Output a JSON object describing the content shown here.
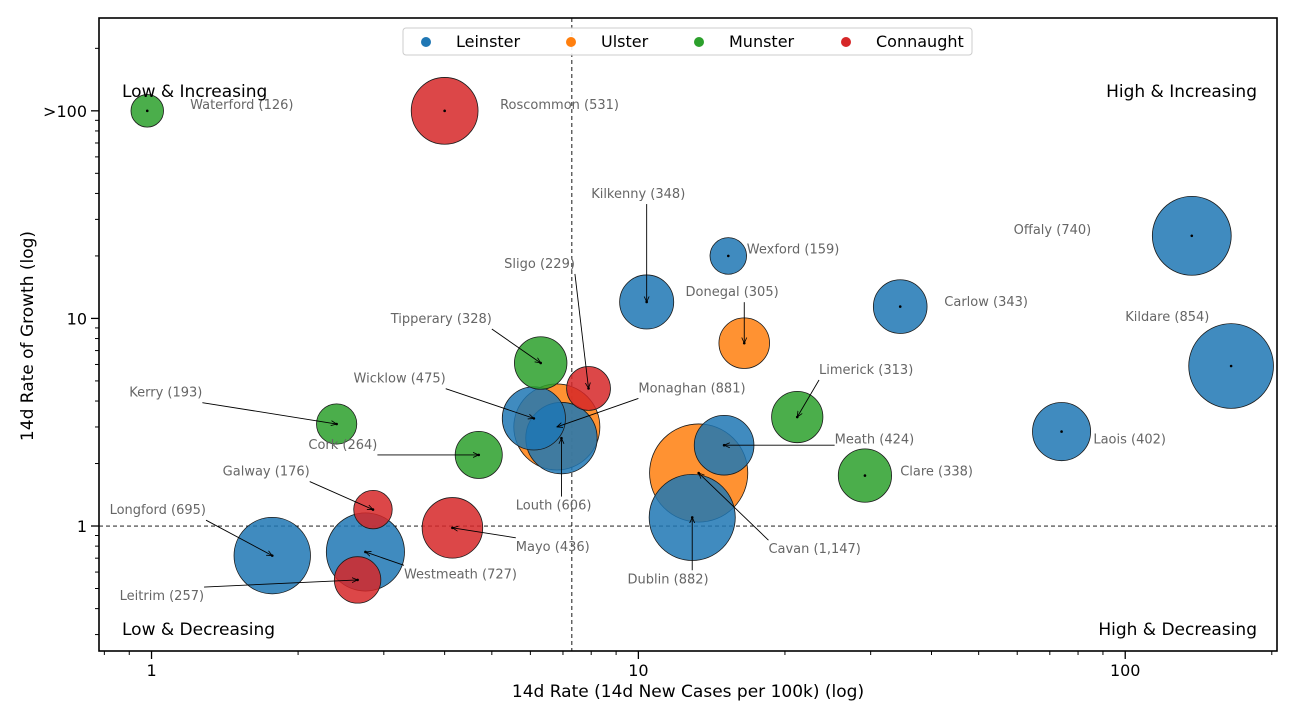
{
  "chart_data": {
    "type": "scatter",
    "xlabel": "14d Rate (14d New Cases per 100k) (log)",
    "ylabel": "14d Rate of Growth (log)",
    "x_scale": "log",
    "y_scale": "log",
    "xlim": [
      0.78,
      205
    ],
    "ylim": [
      0.25,
      280
    ],
    "x_ticks": [
      {
        "value": 1,
        "label": "1"
      },
      {
        "value": 10,
        "label": "10"
      },
      {
        "value": 100,
        "label": "100"
      }
    ],
    "y_ticks": [
      {
        "value": 1,
        "label": "1"
      },
      {
        "value": 10,
        "label": "10"
      },
      {
        "value": 100,
        "label": ">100"
      }
    ],
    "reference_lines": {
      "x": 7.3,
      "y": 1
    },
    "quadrants": {
      "top_left": "Low & Increasing",
      "top_right": "High & Increasing",
      "bottom_left": "Low & Decreasing",
      "bottom_right": "High & Decreasing"
    },
    "legend": {
      "placement": "top-center",
      "entries": [
        {
          "name": "Leinster",
          "color": "#1f77b4"
        },
        {
          "name": "Ulster",
          "color": "#ff7f0e"
        },
        {
          "name": "Munster",
          "color": "#2ca02c"
        },
        {
          "name": "Connaught",
          "color": "#d62728"
        }
      ]
    },
    "points": [
      {
        "label": "Waterford (126)",
        "province": "Munster",
        "cases": 126,
        "x": 0.98,
        "y": 100,
        "lx": 1.2,
        "ly": 102,
        "arrow": false
      },
      {
        "label": "Roscommon (531)",
        "province": "Connaught",
        "cases": 531,
        "x": 4.0,
        "y": 100,
        "lx": 5.2,
        "ly": 102,
        "arrow": false
      },
      {
        "label": "Kilkenny (348)",
        "province": "Leinster",
        "cases": 348,
        "x": 10.4,
        "y": 12,
        "lx": 8.0,
        "ly": 38,
        "arrow": true
      },
      {
        "label": "Wexford (159)",
        "province": "Leinster",
        "cases": 159,
        "x": 15.3,
        "y": 20,
        "lx": 16.7,
        "ly": 20.5,
        "arrow": false
      },
      {
        "label": "Offaly (740)",
        "province": "Leinster",
        "cases": 740,
        "x": 137,
        "y": 25,
        "lx": 59,
        "ly": 25.5,
        "arrow": false
      },
      {
        "label": "Sligo (229)",
        "province": "Connaught",
        "cases": 229,
        "x": 7.9,
        "y": 4.6,
        "lx": 5.3,
        "ly": 17.5,
        "arrow": true
      },
      {
        "label": "Donegal (305)",
        "province": "Ulster",
        "cases": 305,
        "x": 16.5,
        "y": 7.6,
        "lx": 12.5,
        "ly": 12.8,
        "arrow": true
      },
      {
        "label": "Carlow (343)",
        "province": "Leinster",
        "cases": 343,
        "x": 34.5,
        "y": 11.4,
        "lx": 42.5,
        "ly": 11.5,
        "arrow": false
      },
      {
        "label": "Kildare (854)",
        "province": "Leinster",
        "cases": 854,
        "x": 165,
        "y": 5.9,
        "lx": 100,
        "ly": 9.7,
        "arrow": false
      },
      {
        "label": "Tipperary (328)",
        "province": "Munster",
        "cases": 328,
        "x": 6.3,
        "y": 6.1,
        "lx": 3.1,
        "ly": 9.5,
        "arrow": true
      },
      {
        "label": "Kerry (193)",
        "province": "Munster",
        "cases": 193,
        "x": 2.4,
        "y": 3.1,
        "lx": 0.9,
        "ly": 4.2,
        "arrow": true
      },
      {
        "label": "Wicklow (475)",
        "province": "Leinster",
        "cases": 475,
        "x": 6.1,
        "y": 3.3,
        "lx": 2.6,
        "ly": 4.9,
        "arrow": true
      },
      {
        "label": "Monaghan (881)",
        "province": "Ulster",
        "cases": 881,
        "x": 6.8,
        "y": 3.0,
        "lx": 10.0,
        "ly": 4.4,
        "arrow": true
      },
      {
        "label": "Louth (606)",
        "province": "Leinster",
        "cases": 606,
        "x": 6.95,
        "y": 2.65,
        "lx": 5.6,
        "ly": 1.2,
        "arrow": true
      },
      {
        "label": "Limerick (313)",
        "province": "Munster",
        "cases": 313,
        "x": 21.2,
        "y": 3.35,
        "lx": 23.5,
        "ly": 5.4,
        "arrow": true
      },
      {
        "label": "Meath (424)",
        "province": "Leinster",
        "cases": 424,
        "x": 15.0,
        "y": 2.45,
        "lx": 25.3,
        "ly": 2.5,
        "arrow": true
      },
      {
        "label": "Laois (402)",
        "province": "Leinster",
        "cases": 402,
        "x": 74,
        "y": 2.85,
        "lx": 86,
        "ly": 2.5,
        "arrow": false
      },
      {
        "label": "Cork (264)",
        "province": "Munster",
        "cases": 264,
        "x": 4.7,
        "y": 2.2,
        "lx": 2.1,
        "ly": 2.35,
        "arrow": true
      },
      {
        "label": "Clare (338)",
        "province": "Munster",
        "cases": 338,
        "x": 29.2,
        "y": 1.75,
        "lx": 34.5,
        "ly": 1.75,
        "arrow": false
      },
      {
        "label": "Cavan (1,147)",
        "province": "Ulster",
        "cases": 1147,
        "x": 13.3,
        "y": 1.8,
        "lx": 18.5,
        "ly": 0.74,
        "arrow": true
      },
      {
        "label": "Galway (176)",
        "province": "Connaught",
        "cases": 176,
        "x": 2.85,
        "y": 1.2,
        "lx": 1.4,
        "ly": 1.75,
        "arrow": true
      },
      {
        "label": "Longford (695)",
        "province": "Leinster",
        "cases": 695,
        "x": 1.77,
        "y": 0.72,
        "lx": 0.82,
        "ly": 1.14,
        "arrow": true
      },
      {
        "label": "Westmeath (727)",
        "province": "Leinster",
        "cases": 727,
        "x": 2.75,
        "y": 0.75,
        "lx": 3.3,
        "ly": 0.56,
        "arrow": true
      },
      {
        "label": "Mayo (436)",
        "province": "Connaught",
        "cases": 436,
        "x": 4.15,
        "y": 0.98,
        "lx": 5.6,
        "ly": 0.76,
        "arrow": true
      },
      {
        "label": "Leitrim (257)",
        "province": "Connaught",
        "cases": 257,
        "x": 2.65,
        "y": 0.55,
        "lx": 0.86,
        "ly": 0.44,
        "arrow": true
      },
      {
        "label": "Dublin (882)",
        "province": "Leinster",
        "cases": 882,
        "x": 12.9,
        "y": 1.1,
        "lx": 9.5,
        "ly": 0.53,
        "arrow": true
      }
    ]
  }
}
